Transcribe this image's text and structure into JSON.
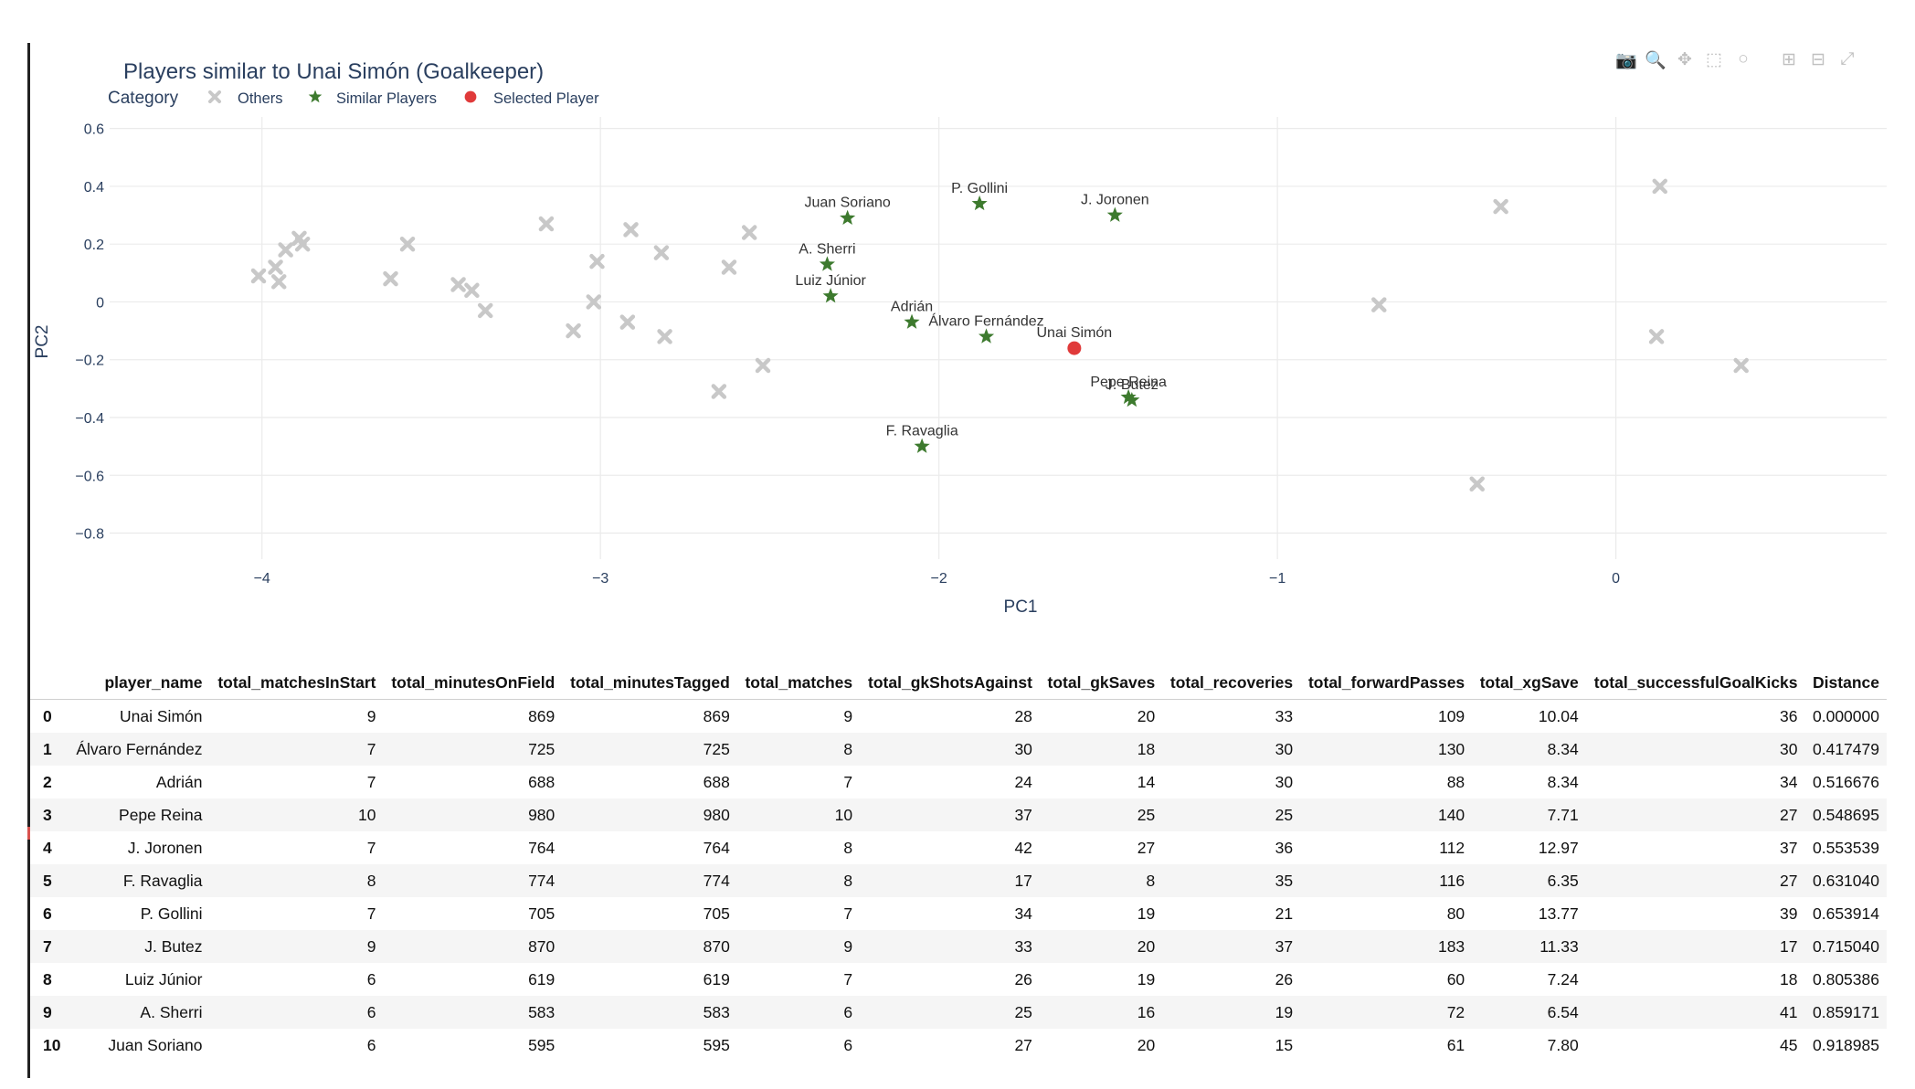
{
  "chart_data": {
    "type": "scatter",
    "title": "Players similar to Unai Simón (Goalkeeper)",
    "xlabel": "PC1",
    "ylabel": "PC2",
    "xlim": [
      -4.45,
      0.8
    ],
    "ylim": [
      -0.89,
      0.64
    ],
    "xticks": [
      -4,
      -3,
      -2,
      -1,
      0
    ],
    "xtick_labels": [
      "−4",
      "−3",
      "−2",
      "−1",
      "0"
    ],
    "yticks": [
      0.6,
      0.4,
      0.2,
      0,
      -0.2,
      -0.4,
      -0.6,
      -0.8
    ],
    "ytick_labels": [
      "0.6",
      "0.4",
      "0.2",
      "0",
      "−0.2",
      "−0.4",
      "−0.6",
      "−0.8"
    ],
    "grid": true,
    "legend": {
      "title": "Category",
      "placement": "top-left",
      "entries": [
        {
          "name": "Others",
          "symbol": "x",
          "color": "#c8c8c8"
        },
        {
          "name": "Similar Players",
          "symbol": "star",
          "color": "#3d7a2e"
        },
        {
          "name": "Selected Player",
          "symbol": "circle",
          "color": "#e03a3a"
        }
      ]
    },
    "series": [
      {
        "name": "Others",
        "symbol": "x",
        "color": "#c8c8c8",
        "points": [
          {
            "x": -4.01,
            "y": 0.09
          },
          {
            "x": -3.96,
            "y": 0.12
          },
          {
            "x": -3.95,
            "y": 0.07
          },
          {
            "x": -3.93,
            "y": 0.18
          },
          {
            "x": -3.89,
            "y": 0.22
          },
          {
            "x": -3.88,
            "y": 0.2
          },
          {
            "x": -3.62,
            "y": 0.08
          },
          {
            "x": -3.57,
            "y": 0.2
          },
          {
            "x": -3.42,
            "y": 0.06
          },
          {
            "x": -3.38,
            "y": 0.04
          },
          {
            "x": -3.34,
            "y": -0.03
          },
          {
            "x": -3.16,
            "y": 0.27
          },
          {
            "x": -3.08,
            "y": -0.1
          },
          {
            "x": -3.02,
            "y": 0.0
          },
          {
            "x": -3.01,
            "y": 0.14
          },
          {
            "x": -2.92,
            "y": -0.07
          },
          {
            "x": -2.91,
            "y": 0.25
          },
          {
            "x": -2.82,
            "y": 0.17
          },
          {
            "x": -2.81,
            "y": -0.12
          },
          {
            "x": -2.65,
            "y": -0.31
          },
          {
            "x": -2.62,
            "y": 0.12
          },
          {
            "x": -2.56,
            "y": 0.24
          },
          {
            "x": -2.52,
            "y": -0.22
          },
          {
            "x": -0.7,
            "y": -0.01
          },
          {
            "x": -0.41,
            "y": -0.63
          },
          {
            "x": -0.34,
            "y": 0.33
          },
          {
            "x": 0.12,
            "y": -0.12
          },
          {
            "x": 0.13,
            "y": 0.4
          },
          {
            "x": 0.37,
            "y": -0.22
          }
        ]
      },
      {
        "name": "Similar Players",
        "symbol": "star",
        "color": "#3d7a2e",
        "points": [
          {
            "x": -2.27,
            "y": 0.29,
            "label": "Juan Soriano"
          },
          {
            "x": -1.88,
            "y": 0.34,
            "label": "P. Gollini"
          },
          {
            "x": -1.48,
            "y": 0.3,
            "label": "J. Joronen"
          },
          {
            "x": -2.33,
            "y": 0.13,
            "label": "A. Sherri"
          },
          {
            "x": -2.32,
            "y": 0.02,
            "label": "Luiz Júnior"
          },
          {
            "x": -2.08,
            "y": -0.07,
            "label": "Adrián"
          },
          {
            "x": -1.86,
            "y": -0.12,
            "label": "Álvaro Fernández"
          },
          {
            "x": -1.44,
            "y": -0.33,
            "label": "Pepe Reina"
          },
          {
            "x": -1.43,
            "y": -0.34,
            "label": "J. Butez"
          },
          {
            "x": -2.05,
            "y": -0.5,
            "label": "F. Ravaglia"
          }
        ]
      },
      {
        "name": "Selected Player",
        "symbol": "circle",
        "color": "#e03a3a",
        "points": [
          {
            "x": -1.6,
            "y": -0.16,
            "label": "Unai Simón"
          }
        ]
      }
    ]
  },
  "modebar": {
    "items": [
      {
        "id": "camera",
        "glyph": "📷"
      },
      {
        "id": "zoom",
        "glyph": "🔍"
      },
      {
        "id": "pan",
        "glyph": "✥"
      },
      {
        "id": "select",
        "glyph": "⬚"
      },
      {
        "id": "lasso",
        "glyph": "○"
      },
      {
        "id": "zoom-in",
        "glyph": "⊞"
      },
      {
        "id": "zoom-out",
        "glyph": "⊟"
      },
      {
        "id": "autoscale",
        "glyph": "⤢"
      }
    ]
  },
  "table": {
    "columns": [
      "",
      "player_name",
      "total_matchesInStart",
      "total_minutesOnField",
      "total_minutesTagged",
      "total_matches",
      "total_gkShotsAgainst",
      "total_gkSaves",
      "total_recoveries",
      "total_forwardPasses",
      "total_xgSave",
      "total_successfulGoalKicks",
      "Distance"
    ],
    "rows": [
      [
        "0",
        "Unai Simón",
        "9",
        "869",
        "869",
        "9",
        "28",
        "20",
        "33",
        "109",
        "10.04",
        "36",
        "0.000000"
      ],
      [
        "1",
        "Álvaro Fernández",
        "7",
        "725",
        "725",
        "8",
        "30",
        "18",
        "30",
        "130",
        "8.34",
        "30",
        "0.417479"
      ],
      [
        "2",
        "Adrián",
        "7",
        "688",
        "688",
        "7",
        "24",
        "14",
        "30",
        "88",
        "8.34",
        "34",
        "0.516676"
      ],
      [
        "3",
        "Pepe Reina",
        "10",
        "980",
        "980",
        "10",
        "37",
        "25",
        "25",
        "140",
        "7.71",
        "27",
        "0.548695"
      ],
      [
        "4",
        "J. Joronen",
        "7",
        "764",
        "764",
        "8",
        "42",
        "27",
        "36",
        "112",
        "12.97",
        "37",
        "0.553539"
      ],
      [
        "5",
        "F. Ravaglia",
        "8",
        "774",
        "774",
        "8",
        "17",
        "8",
        "35",
        "116",
        "6.35",
        "27",
        "0.631040"
      ],
      [
        "6",
        "P. Gollini",
        "7",
        "705",
        "705",
        "7",
        "34",
        "19",
        "21",
        "80",
        "13.77",
        "39",
        "0.653914"
      ],
      [
        "7",
        "J. Butez",
        "9",
        "870",
        "870",
        "9",
        "33",
        "20",
        "37",
        "183",
        "11.33",
        "17",
        "0.715040"
      ],
      [
        "8",
        "Luiz Júnior",
        "6",
        "619",
        "619",
        "7",
        "26",
        "19",
        "26",
        "60",
        "7.24",
        "18",
        "0.805386"
      ],
      [
        "9",
        "A. Sherri",
        "6",
        "583",
        "583",
        "6",
        "25",
        "16",
        "19",
        "72",
        "6.54",
        "41",
        "0.859171"
      ],
      [
        "10",
        "Juan Soriano",
        "6",
        "595",
        "595",
        "6",
        "27",
        "20",
        "15",
        "61",
        "7.80",
        "45",
        "0.918985"
      ]
    ]
  }
}
